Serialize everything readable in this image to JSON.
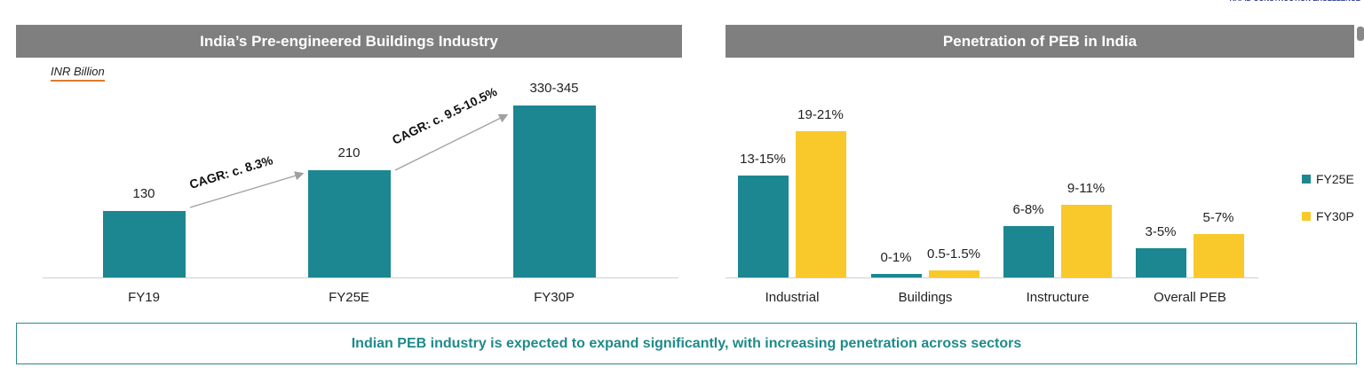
{
  "logo_text": "RAPID CONSTRUCTION EXCELLENCE",
  "footer": "Indian PEB industry is expected to expand significantly, with increasing penetration across sectors",
  "colors": {
    "teal": "#1c8791",
    "yellow": "#f9c92b",
    "header": "#7f7f7f"
  },
  "chart_data": [
    {
      "type": "bar",
      "title": "India’s Pre-engineered Buildings Industry",
      "unit": "INR Billion",
      "categories": [
        "FY19",
        "FY25E",
        "FY30P"
      ],
      "values": [
        130,
        210,
        337.5
      ],
      "data_labels": [
        "130",
        "210",
        "330-345"
      ],
      "annotations": [
        "CAGR: c. 8.3%",
        "CAGR: c. 9.5-10.5%"
      ],
      "color": "#1c8791"
    },
    {
      "type": "bar",
      "title": "Penetration of PEB in India",
      "categories": [
        "Industrial",
        "Buildings",
        "Instructure",
        "Overall PEB"
      ],
      "legend_placement": "right",
      "series": [
        {
          "name": "FY25E",
          "color": "#1c8791",
          "values": [
            14,
            0.5,
            7,
            4
          ],
          "data_labels": [
            "13-15%",
            "0-1%",
            "6-8%",
            "3-5%"
          ]
        },
        {
          "name": "FY30P",
          "color": "#f9c92b",
          "values": [
            20,
            1,
            10,
            6
          ],
          "data_labels": [
            "19-21%",
            "0.5-1.5%",
            "9-11%",
            "5-7%"
          ]
        }
      ]
    }
  ]
}
